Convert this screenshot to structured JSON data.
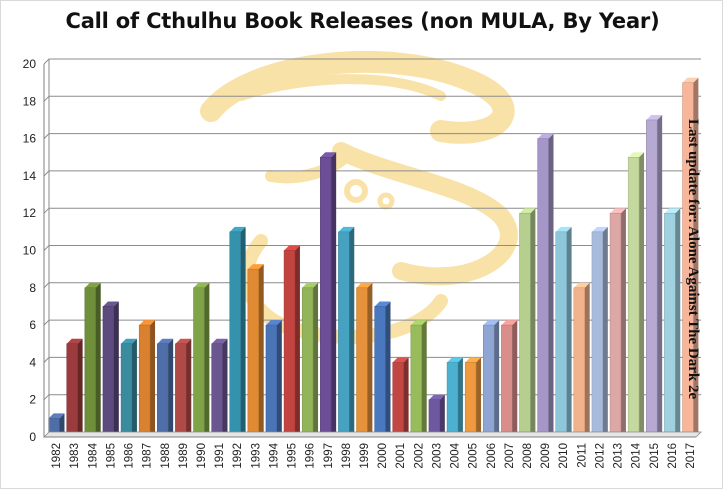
{
  "chart_data": {
    "type": "bar",
    "title": "Call of Cthulhu Book Releases (non MULA, By Year)",
    "xlabel": "",
    "ylabel": "",
    "ylim": [
      0,
      20
    ],
    "yticks": [
      "0",
      "2",
      "4",
      "6",
      "8",
      "10",
      "12",
      "14",
      "16",
      "18",
      "20"
    ],
    "grid": true,
    "legend": "none",
    "annotation": "Last update for: Alone Against The Dark 2e",
    "categories": [
      "1982",
      "1983",
      "1984",
      "1985",
      "1986",
      "1987",
      "1988",
      "1989",
      "1990",
      "1991",
      "1992",
      "1993",
      "1994",
      "1995",
      "1996",
      "1997",
      "1998",
      "1999",
      "2000",
      "2001",
      "2002",
      "2003",
      "2004",
      "2005",
      "2006",
      "2007",
      "2008",
      "2009",
      "2010",
      "2011",
      "2012",
      "2013",
      "2014",
      "2015",
      "2016",
      "2017"
    ],
    "values": [
      1,
      5,
      8,
      7,
      5,
      6,
      5,
      5,
      8,
      5,
      11,
      9,
      6,
      10,
      8,
      15,
      11,
      8,
      7,
      4,
      6,
      2,
      4,
      4,
      6,
      6,
      12,
      16,
      11,
      8,
      11,
      12,
      15,
      17,
      12,
      19
    ],
    "colors": [
      "#4f6ea8",
      "#9b3b3d",
      "#6f8f3a",
      "#5d4a7f",
      "#3a8aa0",
      "#d9812f",
      "#4f6ea8",
      "#b04a46",
      "#7fa347",
      "#6a5790",
      "#3592ad",
      "#e08b33",
      "#4a74b8",
      "#c2433f",
      "#93b45a",
      "#6b4e95",
      "#45a2c0",
      "#e6923c",
      "#4a78be",
      "#c24743",
      "#98bb5b",
      "#6e58a0",
      "#4cb1d0",
      "#f0993f",
      "#8fa6d4",
      "#d98e8c",
      "#b6cf8f",
      "#a497c7",
      "#8fc7da",
      "#f2b38c",
      "#a8bbdd",
      "#dda7a6",
      "#c5d99f",
      "#b6a9d2",
      "#9fd1e0",
      "#f7b69a"
    ]
  }
}
